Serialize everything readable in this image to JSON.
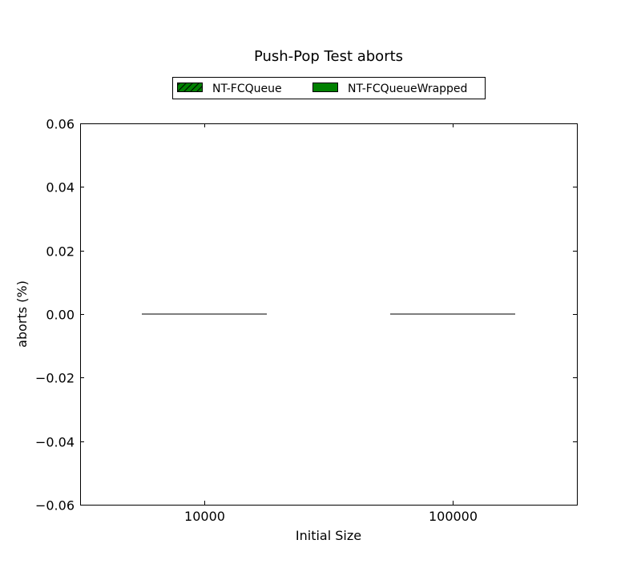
{
  "chart_data": {
    "type": "bar",
    "title": "Push-Pop Test aborts",
    "xlabel": "Initial Size",
    "ylabel": "aborts (%)",
    "categories": [
      "10000",
      "100000"
    ],
    "ylim": [
      -0.06,
      0.06
    ],
    "yticks": [
      -0.06,
      -0.04,
      -0.02,
      0.0,
      0.02,
      0.04,
      0.06
    ],
    "ytick_labels": [
      "−0.06",
      "−0.04",
      "−0.02",
      "0.00",
      "0.02",
      "0.04",
      "0.06"
    ],
    "grid": false,
    "legend_position": "top-center",
    "series": [
      {
        "name": "NT-FCQueue",
        "values": [
          0,
          0
        ],
        "color": "#008000",
        "hatch": "diagonal"
      },
      {
        "name": "NT-FCQueueWrapped",
        "values": [
          0,
          0
        ],
        "color": "#008000",
        "hatch": "none"
      }
    ]
  }
}
